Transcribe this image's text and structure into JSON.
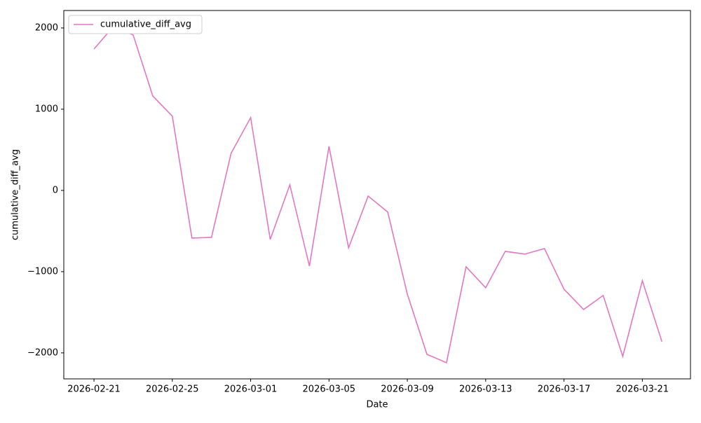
{
  "chart_data": {
    "type": "line",
    "xlabel": "Date",
    "ylabel": "cumulative_diff_avg",
    "x": [
      "2026-02-21",
      "2026-02-22",
      "2026-02-23",
      "2026-02-24",
      "2026-02-25",
      "2026-02-26",
      "2026-02-27",
      "2026-02-28",
      "2026-03-01",
      "2026-03-02",
      "2026-03-03",
      "2026-03-04",
      "2026-03-05",
      "2026-03-06",
      "2026-03-07",
      "2026-03-08",
      "2026-03-09",
      "2026-03-10",
      "2026-03-11",
      "2026-03-12",
      "2026-03-13",
      "2026-03-14",
      "2026-03-15",
      "2026-03-16",
      "2026-03-17",
      "2026-03-18",
      "2026-03-19",
      "2026-03-20",
      "2026-03-21",
      "2026-03-22"
    ],
    "series": [
      {
        "name": "cumulative_diff_avg",
        "color": "#e377c2",
        "values": [
          1741,
          2020,
          1914,
          1164,
          914,
          -586,
          -578,
          457,
          897,
          -603,
          69,
          -931,
          543,
          -707,
          -69,
          -267,
          -1276,
          -2017,
          -2121,
          -940,
          -1198,
          -750,
          -784,
          -716,
          -1216,
          -1466,
          -1293,
          -2043,
          -1112,
          -1862
        ]
      }
    ],
    "xlim": [
      "2026-02-19T11:00Z",
      "2026-03-23T11:00Z"
    ],
    "xticks": [
      "2026-02-21",
      "2026-02-25",
      "2026-03-01",
      "2026-03-05",
      "2026-03-09",
      "2026-03-13",
      "2026-03-17",
      "2026-03-21"
    ],
    "ylim": [
      -2320,
      2215
    ],
    "yticks": [
      {
        "value": -2000,
        "label": "−2000"
      },
      {
        "value": -1000,
        "label": "−1000"
      },
      0,
      1000,
      2000
    ],
    "legend": "upper left"
  }
}
